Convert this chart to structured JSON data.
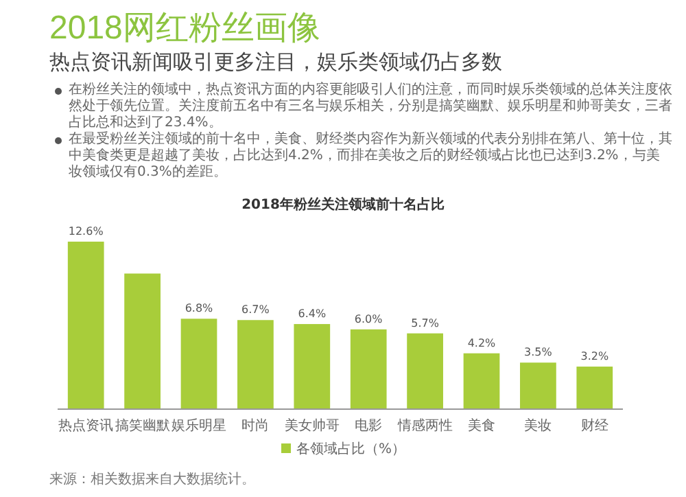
{
  "chart_data": {
    "type": "bar",
    "title": "2018网红粉丝画像",
    "subtitle": "热点资讯新闻吸引更多注目，娱乐类领域仍占多数",
    "annotations": [
      "在粉丝关注的领域中，热点资讯方面的内容更能吸引人们的注意，而同时娱乐类领域的总体关注度依然处于领先位置。关注度前五名中有三名与娱乐相关，分别是搞笑幽默、娱乐明星和帅哥美女，三者占比总和达到了23.4%。",
      "在最受粉丝关注领域的前十名中，美食、财经类内容作为新兴领域的代表分别排在第八、第十位，其中美食类更是超越了美妆，占比达到4.2%，而排在美妆之后的财经领域占比也已达到3.2%，与美妆领域仅有0.3%的差距。",
      "2018年粉丝关注领域前十名占比",
      "来源：相关数据来自大数据统计。"
    ],
    "categories": [
      "热点资讯",
      "搞笑幽默",
      "娱乐明星",
      "时尚",
      "美女帅哥",
      "电影",
      "情感两性",
      "美食",
      "美妆",
      "财经"
    ],
    "series": [
      {
        "name": "各领域占比（%）",
        "color": "#a8cd3a",
        "values": [
          12.6,
          10.2,
          6.8,
          6.7,
          6.4,
          6.0,
          5.7,
          4.2,
          3.5,
          3.2
        ],
        "value_labels": [
          "12.6%",
          null,
          "6.8%",
          "6.7%",
          "6.4%",
          "6.0%",
          "5.7%",
          "4.2%",
          "3.5%",
          "3.2%"
        ]
      }
    ],
    "legend": "bottom"
  }
}
